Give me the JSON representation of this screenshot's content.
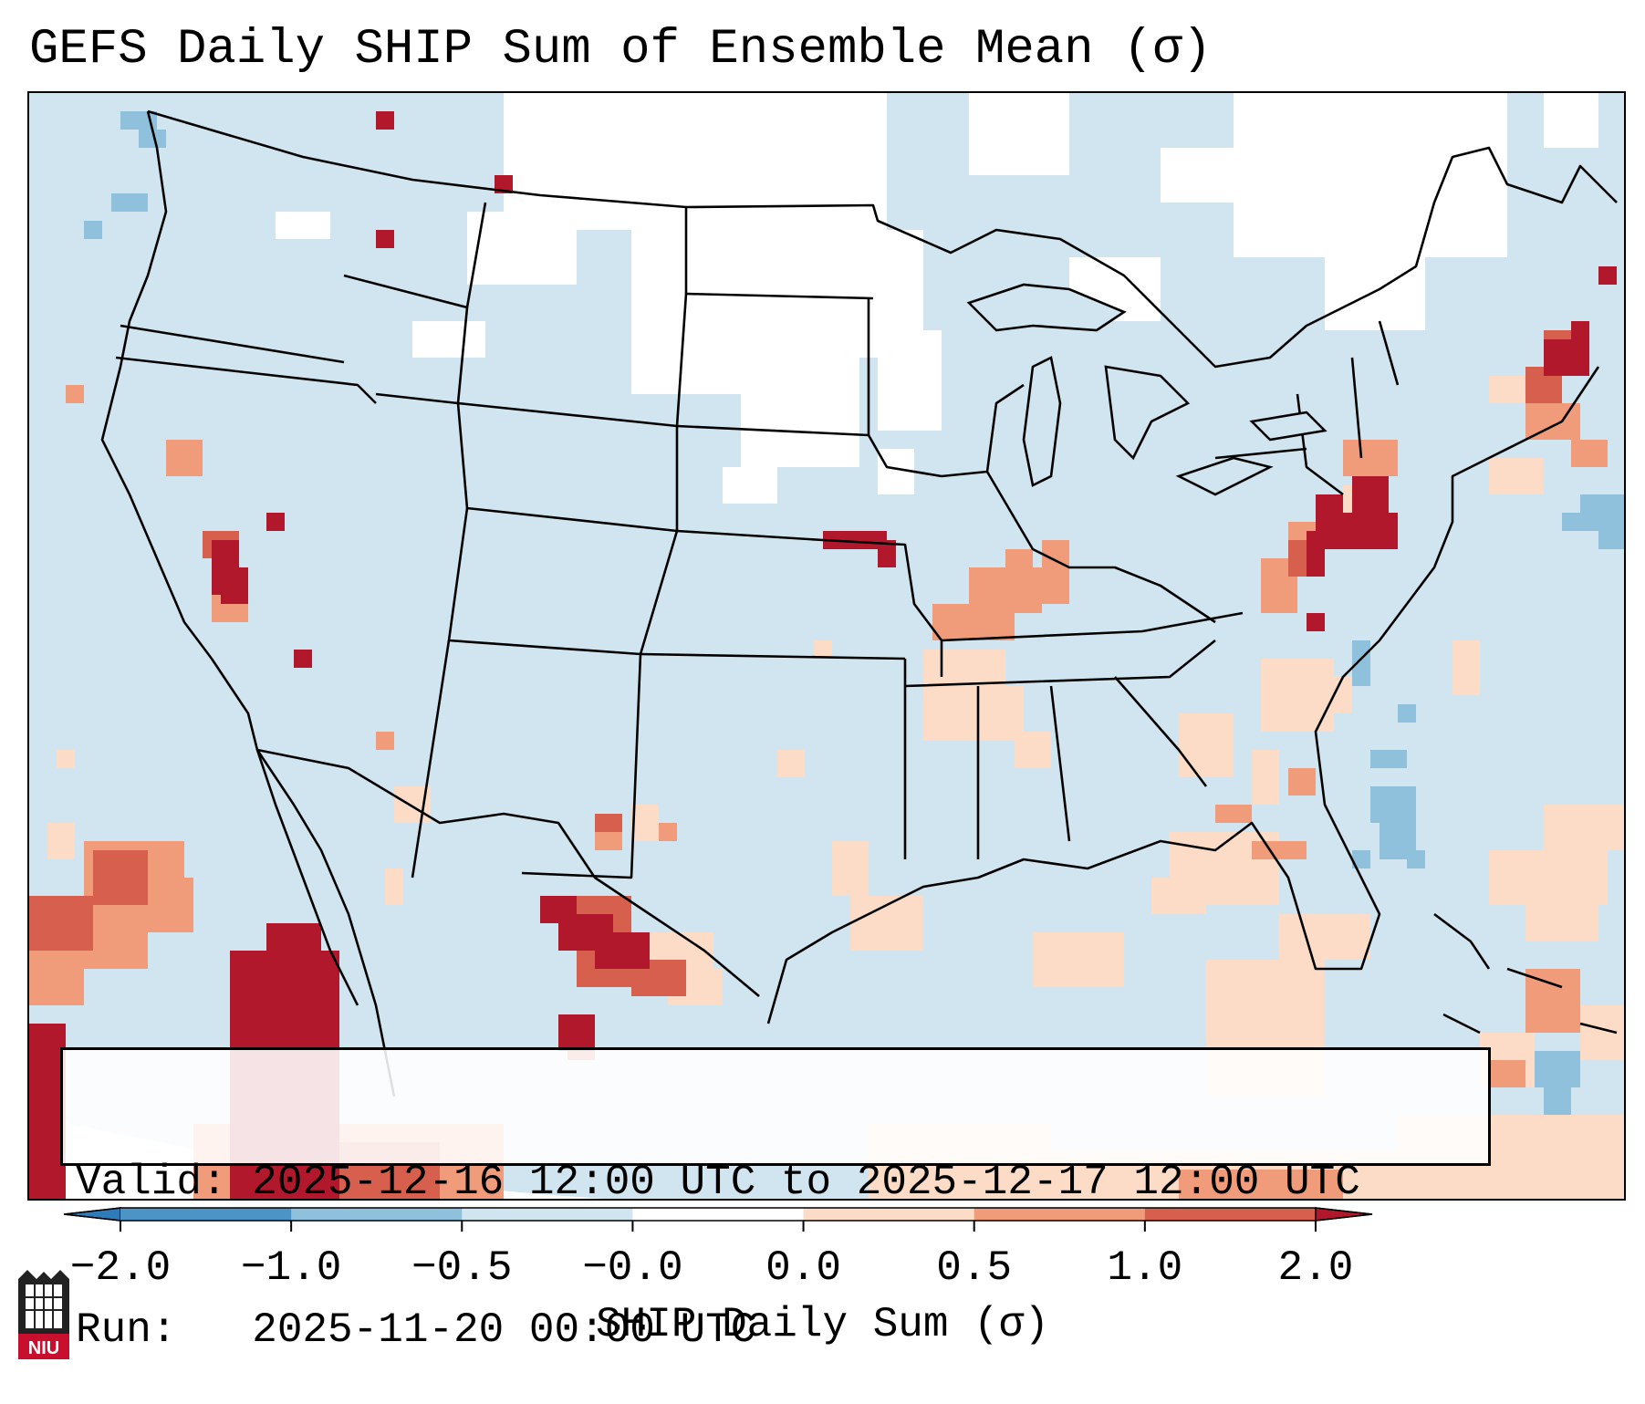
{
  "title": "GEFS Daily SHIP Sum of Ensemble Mean (σ)",
  "info": {
    "valid_line": "Valid: 2025-12-16 12:00 UTC to 2025-12-17 12:00 UTC",
    "run_line": "Run:   2025-11-20 00:00 UTC"
  },
  "colorbar": {
    "label": "SHIP Daily Sum (σ)",
    "tick_labels": [
      "−2.0",
      "−1.0",
      "−0.5",
      "−0.0",
      "0.0",
      "0.5",
      "1.0",
      "2.0"
    ],
    "bins": [
      {
        "range": "< -2.0",
        "color": "#2f7ab8"
      },
      {
        "range": "-2.0 to -1.0",
        "color": "#4b94c5"
      },
      {
        "range": "-1.0 to -0.5",
        "color": "#8fc1dd"
      },
      {
        "range": "-0.5 to -0.0",
        "color": "#d1e5f0"
      },
      {
        "range": "-0.0 to 0.0",
        "color": "#ffffff"
      },
      {
        "range": "0.0 to 0.5",
        "color": "#fcdbc7"
      },
      {
        "range": "0.5 to 1.0",
        "color": "#f09c7b"
      },
      {
        "range": "1.0 to 2.0",
        "color": "#d6604d"
      },
      {
        "range": "> 2.0",
        "color": "#b2182b"
      }
    ]
  },
  "map": {
    "domain": "Contiguous United States",
    "background_value_color": "#d1e5f0",
    "highlights": [
      {
        "region": "Pennsylvania / Maryland / West Virginia",
        "level": "> 2.0"
      },
      {
        "region": "Southern New England",
        "level": "> 2.0"
      },
      {
        "region": "Kansas / Missouri border",
        "level": "> 2.0"
      },
      {
        "region": "Northern Mexico / Texas Big Bend",
        "level": "> 2.0"
      },
      {
        "region": "Southwest Mexico Pacific coast",
        "level": "> 2.0"
      },
      {
        "region": "Central California / Sierra Nevada",
        "level": "1.0 to 2.0"
      },
      {
        "region": "Missouri / Illinois",
        "level": "0.5 to 1.0"
      },
      {
        "region": "Georgia / Gulf of Mexico",
        "level": "0.0 to 0.5"
      }
    ]
  },
  "logo": {
    "text": "NIU",
    "name": "niu-logo"
  }
}
